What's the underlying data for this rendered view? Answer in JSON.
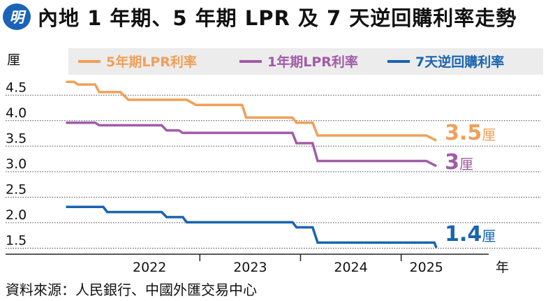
{
  "header": {
    "logo_text": "明",
    "title": "內地 1 年期、5 年期 LPR 及 7 天逆回購利率走勢"
  },
  "source": "資料來源：人民銀行、中國外匯交易中心",
  "colors": {
    "lpr5": "#f0a058",
    "lpr1": "#a25ba8",
    "rr7": "#1a64b0",
    "legend_bg": "#ececec"
  },
  "chart_data": {
    "type": "line",
    "ylabel": "厘",
    "xlabel": "年",
    "ylim": [
      1.3,
      4.75
    ],
    "y_ticks": [
      "4.5",
      "4.0",
      "3.5",
      "3.0",
      "2.5",
      "2.0",
      "1.5"
    ],
    "y_tick_values": [
      4.5,
      4.0,
      3.5,
      3.0,
      2.5,
      2.0,
      1.5
    ],
    "x_ticks": [
      "2022",
      "2023",
      "2024",
      "2025"
    ],
    "x_tick_values": [
      2022.5,
      2023.5,
      2024.5,
      2025.25
    ],
    "xlim": [
      2021.5,
      2025.8
    ],
    "legend": [
      "5年期LPR利率",
      "1年期LPR利率",
      "7天逆回購利率"
    ],
    "series": [
      {
        "name": "5年期LPR利率",
        "end_label": "3.5",
        "end_unit": "厘",
        "points": [
          [
            2021.67,
            4.65
          ],
          [
            2021.75,
            4.65
          ],
          [
            2021.79,
            4.6
          ],
          [
            2021.96,
            4.6
          ],
          [
            2022.0,
            4.45
          ],
          [
            2022.21,
            4.45
          ],
          [
            2022.29,
            4.3
          ],
          [
            2022.87,
            4.3
          ],
          [
            2022.96,
            4.2
          ],
          [
            2023.42,
            4.2
          ],
          [
            2023.46,
            3.95
          ],
          [
            2023.92,
            3.95
          ],
          [
            2023.96,
            3.85
          ],
          [
            2024.12,
            3.85
          ],
          [
            2024.17,
            3.6
          ],
          [
            2025.25,
            3.6
          ],
          [
            2025.35,
            3.5
          ]
        ]
      },
      {
        "name": "1年期LPR利率",
        "end_label": "3",
        "end_unit": "厘",
        "points": [
          [
            2021.67,
            3.85
          ],
          [
            2021.96,
            3.85
          ],
          [
            2022.0,
            3.8
          ],
          [
            2022.62,
            3.8
          ],
          [
            2022.67,
            3.7
          ],
          [
            2022.79,
            3.7
          ],
          [
            2022.83,
            3.65
          ],
          [
            2023.92,
            3.65
          ],
          [
            2023.96,
            3.45
          ],
          [
            2024.12,
            3.45
          ],
          [
            2024.17,
            3.1
          ],
          [
            2025.25,
            3.1
          ],
          [
            2025.35,
            3.0
          ]
        ]
      },
      {
        "name": "7天逆回購利率",
        "end_label": "1.4",
        "end_unit": "厘",
        "points": [
          [
            2021.67,
            2.2
          ],
          [
            2022.04,
            2.2
          ],
          [
            2022.08,
            2.1
          ],
          [
            2022.62,
            2.1
          ],
          [
            2022.67,
            2.0
          ],
          [
            2022.83,
            2.0
          ],
          [
            2022.87,
            1.9
          ],
          [
            2023.92,
            1.9
          ],
          [
            2023.96,
            1.8
          ],
          [
            2024.12,
            1.8
          ],
          [
            2024.17,
            1.5
          ],
          [
            2025.33,
            1.5
          ],
          [
            2025.35,
            1.4
          ]
        ]
      }
    ]
  }
}
